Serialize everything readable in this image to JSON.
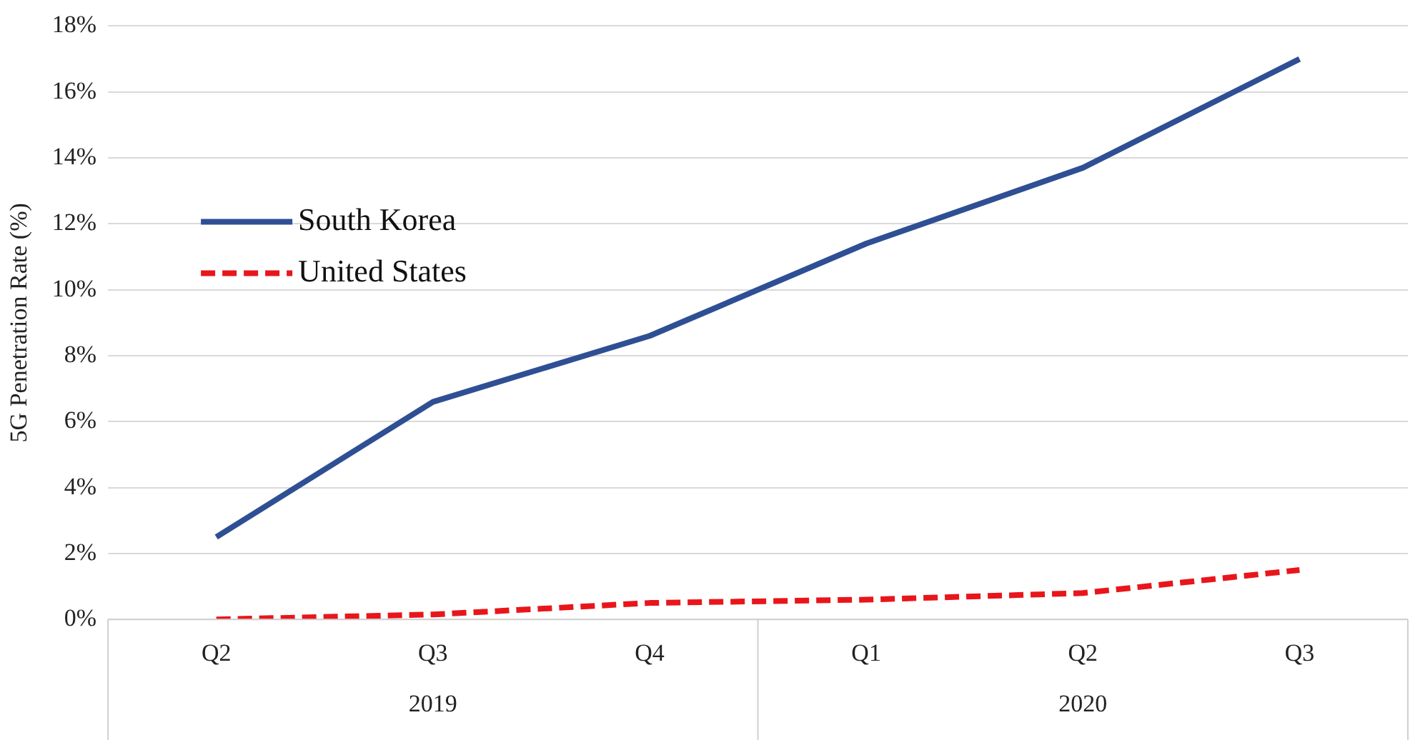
{
  "chart_data": {
    "type": "line",
    "ylabel": "5G Penetration Rate (%)",
    "categories": [
      "Q2",
      "Q3",
      "Q4",
      "Q1",
      "Q2",
      "Q3"
    ],
    "annotations": [
      "2019",
      "2020"
    ],
    "series": [
      {
        "name": "South Korea",
        "color": "#2f4f94",
        "values": [
          2.5,
          6.6,
          8.6,
          11.4,
          13.7,
          17.0
        ],
        "line_style": "solid"
      },
      {
        "name": "United States",
        "color": "#e8161b",
        "values": [
          0,
          0.15,
          0.5,
          0.6,
          0.8,
          1.5
        ],
        "line_style": "dashed"
      }
    ],
    "ylim": [
      0,
      18
    ],
    "yticks": [
      {
        "value": 0,
        "label": "0%"
      },
      {
        "value": 2,
        "label": "2%"
      },
      {
        "value": 4,
        "label": "4%"
      },
      {
        "value": 6,
        "label": "6%"
      },
      {
        "value": 8,
        "label": "8%"
      },
      {
        "value": 10,
        "label": "10%"
      },
      {
        "value": 12,
        "label": "12%"
      },
      {
        "value": 14,
        "label": "14%"
      },
      {
        "value": 16,
        "label": "16%"
      },
      {
        "value": 18,
        "label": "18%"
      }
    ],
    "grid": "y",
    "legend": "left",
    "marker": "none"
  }
}
